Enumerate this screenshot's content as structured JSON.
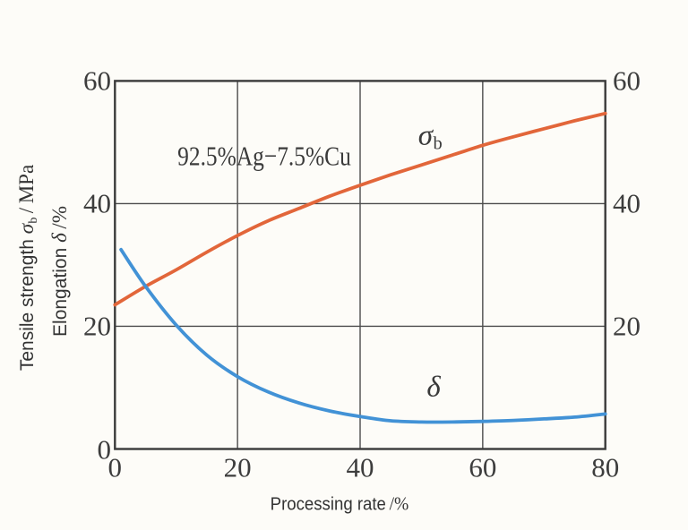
{
  "background_color": "#fdfcf8",
  "chart_data": {
    "type": "line",
    "annotation": "92.5%Ag−7.5%Cu",
    "x_axis": {
      "label_prefix": "Processing rate ",
      "label_unit": "/%",
      "min": 0,
      "max": 80,
      "ticks": [
        0,
        20,
        40,
        60,
        80
      ],
      "grid": [
        20,
        40,
        60
      ]
    },
    "y_axis": {
      "min": 0,
      "max": 60,
      "ticks_left": [
        0,
        20,
        40,
        60
      ],
      "ticks_right": [
        20,
        40,
        60
      ],
      "grid": [
        20,
        40
      ],
      "title_primary": {
        "prefix": "Tensile strength ",
        "symbol": "σ",
        "symbol_sub": "b",
        "unit": " / MPa"
      },
      "title_secondary": {
        "prefix": "Elongation ",
        "symbol": "δ",
        "unit": " /%"
      }
    },
    "grid_on": true,
    "axis_color": "#3a3a3a",
    "grid_color": "#4c4c4c",
    "series": [
      {
        "name": "tensile-strength",
        "label_symbol": "σ",
        "label_sub": "b",
        "color": "#e2663a",
        "x": [
          0,
          5,
          10,
          15,
          20,
          25,
          30,
          35,
          40,
          45,
          50,
          55,
          60,
          65,
          70,
          75,
          80
        ],
        "y": [
          23.5,
          26.5,
          29.2,
          32.1,
          34.8,
          37.2,
          39.2,
          41.2,
          43.0,
          44.7,
          46.3,
          47.9,
          49.5,
          50.9,
          52.2,
          53.5,
          54.7
        ]
      },
      {
        "name": "elongation",
        "label_symbol": "δ",
        "label_sub": "",
        "color": "#4292d6",
        "x": [
          1,
          5,
          10,
          15,
          20,
          25,
          30,
          35,
          40,
          45,
          50,
          55,
          60,
          65,
          70,
          75,
          80
        ],
        "y": [
          32.5,
          26.5,
          20.2,
          15.3,
          11.8,
          9.3,
          7.5,
          6.2,
          5.3,
          4.6,
          4.4,
          4.4,
          4.5,
          4.65,
          4.9,
          5.2,
          5.7
        ]
      }
    ]
  }
}
